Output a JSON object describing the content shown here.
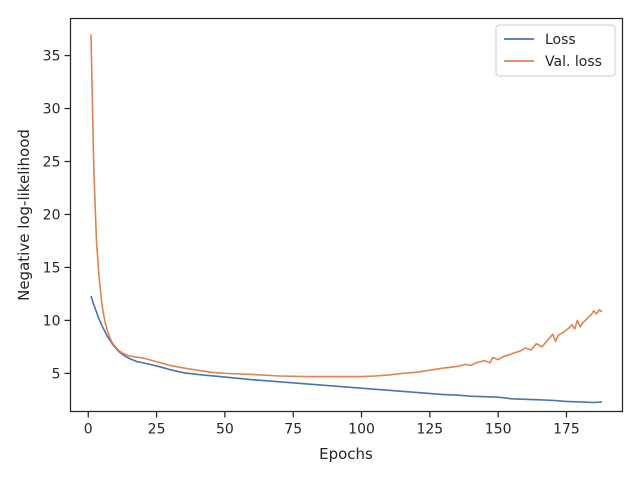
{
  "chart_data": {
    "type": "line",
    "xlabel": "Epochs",
    "ylabel": "Negative log-likelihood",
    "xlim": [
      -6.5,
      195.5
    ],
    "ylim": [
      1.4,
      38.5
    ],
    "xticks": [
      0,
      25,
      50,
      75,
      100,
      125,
      150,
      175
    ],
    "yticks": [
      5,
      10,
      15,
      20,
      25,
      30,
      35
    ],
    "grid": false,
    "legend_position": "top-right",
    "series": [
      {
        "name": "Loss",
        "color": "#4c72b0",
        "points": [
          [
            1,
            12.3
          ],
          [
            2,
            11.5
          ],
          [
            3,
            10.8
          ],
          [
            4,
            10.1
          ],
          [
            5,
            9.5
          ],
          [
            6,
            9.0
          ],
          [
            7,
            8.5
          ],
          [
            8,
            8.1
          ],
          [
            9,
            7.7
          ],
          [
            10,
            7.4
          ],
          [
            11,
            7.1
          ],
          [
            12,
            6.9
          ],
          [
            13,
            6.7
          ],
          [
            14,
            6.55
          ],
          [
            15,
            6.4
          ],
          [
            16,
            6.3
          ],
          [
            17,
            6.2
          ],
          [
            18,
            6.1
          ],
          [
            19,
            6.05
          ],
          [
            20,
            6.0
          ],
          [
            25,
            5.7
          ],
          [
            30,
            5.35
          ],
          [
            35,
            5.05
          ],
          [
            40,
            4.9
          ],
          [
            50,
            4.65
          ],
          [
            60,
            4.4
          ],
          [
            70,
            4.2
          ],
          [
            80,
            4.0
          ],
          [
            90,
            3.8
          ],
          [
            100,
            3.6
          ],
          [
            110,
            3.4
          ],
          [
            120,
            3.2
          ],
          [
            130,
            3.0
          ],
          [
            135,
            2.95
          ],
          [
            140,
            2.85
          ],
          [
            145,
            2.8
          ],
          [
            150,
            2.75
          ],
          [
            155,
            2.6
          ],
          [
            160,
            2.55
          ],
          [
            165,
            2.5
          ],
          [
            170,
            2.45
          ],
          [
            175,
            2.35
          ],
          [
            180,
            2.3
          ],
          [
            185,
            2.25
          ],
          [
            188,
            2.3
          ]
        ]
      },
      {
        "name": "Val. loss",
        "color": "#dd8452",
        "points": [
          [
            1,
            37.0
          ],
          [
            2,
            24.5
          ],
          [
            3,
            17.5
          ],
          [
            4,
            14.0
          ],
          [
            5,
            11.5
          ],
          [
            6,
            10.0
          ],
          [
            7,
            9.0
          ],
          [
            8,
            8.3
          ],
          [
            9,
            7.8
          ],
          [
            10,
            7.5
          ],
          [
            11,
            7.2
          ],
          [
            12,
            7.0
          ],
          [
            13,
            6.85
          ],
          [
            14,
            6.75
          ],
          [
            15,
            6.65
          ],
          [
            17,
            6.55
          ],
          [
            20,
            6.45
          ],
          [
            25,
            6.1
          ],
          [
            30,
            5.75
          ],
          [
            35,
            5.5
          ],
          [
            40,
            5.3
          ],
          [
            45,
            5.1
          ],
          [
            50,
            5.0
          ],
          [
            60,
            4.9
          ],
          [
            70,
            4.75
          ],
          [
            80,
            4.7
          ],
          [
            90,
            4.7
          ],
          [
            100,
            4.7
          ],
          [
            105,
            4.75
          ],
          [
            110,
            4.85
          ],
          [
            115,
            5.0
          ],
          [
            120,
            5.1
          ],
          [
            125,
            5.3
          ],
          [
            130,
            5.5
          ],
          [
            135,
            5.65
          ],
          [
            138,
            5.85
          ],
          [
            140,
            5.75
          ],
          [
            142,
            6.0
          ],
          [
            145,
            6.2
          ],
          [
            147,
            6.0
          ],
          [
            148,
            6.5
          ],
          [
            150,
            6.3
          ],
          [
            152,
            6.6
          ],
          [
            154,
            6.75
          ],
          [
            156,
            6.95
          ],
          [
            158,
            7.1
          ],
          [
            160,
            7.4
          ],
          [
            162,
            7.2
          ],
          [
            164,
            7.8
          ],
          [
            166,
            7.5
          ],
          [
            168,
            8.1
          ],
          [
            170,
            8.7
          ],
          [
            171,
            8.0
          ],
          [
            172,
            8.6
          ],
          [
            174,
            8.9
          ],
          [
            176,
            9.3
          ],
          [
            177,
            9.6
          ],
          [
            178,
            9.2
          ],
          [
            179,
            10.0
          ],
          [
            180,
            9.4
          ],
          [
            181,
            9.8
          ],
          [
            182,
            10.0
          ],
          [
            183,
            10.3
          ],
          [
            184,
            10.5
          ],
          [
            185,
            10.9
          ],
          [
            186,
            10.6
          ],
          [
            187,
            11.0
          ],
          [
            188,
            10.8
          ]
        ]
      }
    ]
  }
}
